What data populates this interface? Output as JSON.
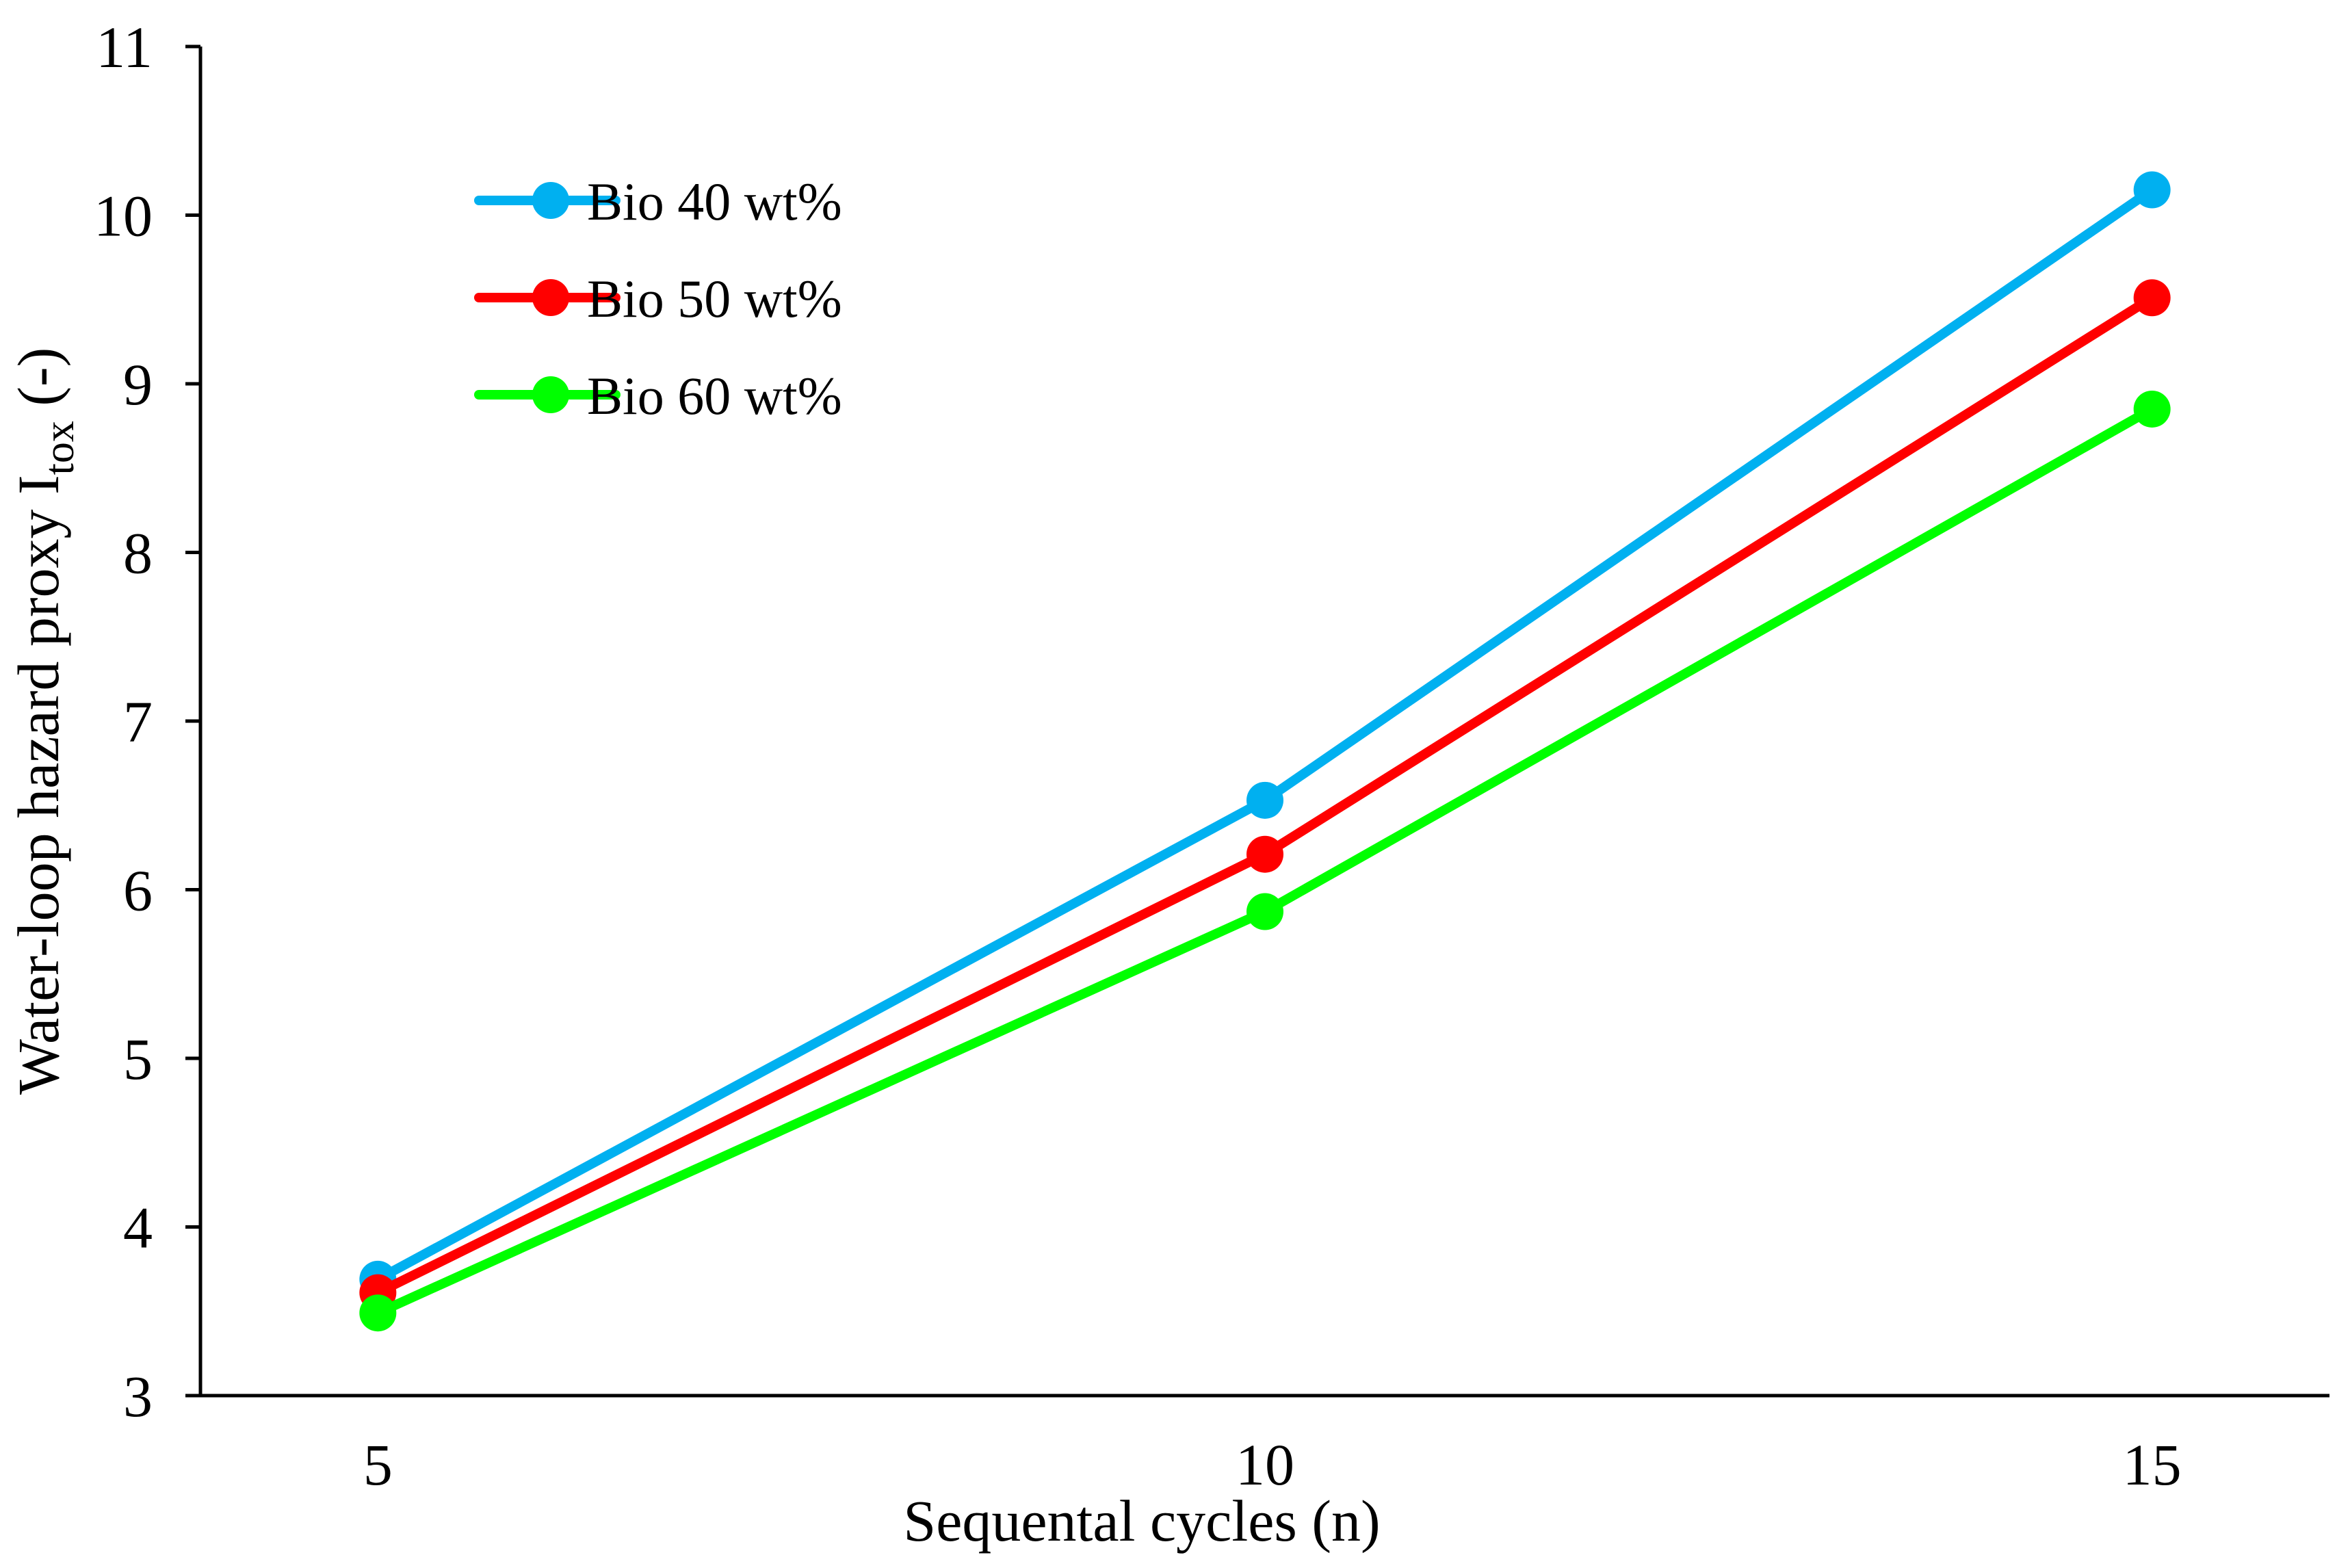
{
  "chart_data": {
    "type": "line",
    "title": "",
    "xlabel": "Sequental cycles (n)",
    "ylabel": {
      "main": "Water-loop hazard proxy I",
      "subscript": "tox",
      "suffix": " (-)"
    },
    "x": [
      5,
      10,
      15
    ],
    "x_ticks": [
      "5",
      "10",
      "15"
    ],
    "xlim": [
      4,
      16
    ],
    "ylim": [
      3,
      11
    ],
    "y_ticks": [
      "3",
      "4",
      "5",
      "6",
      "7",
      "8",
      "9",
      "10",
      "11"
    ],
    "grid": false,
    "legend_position": "top-left",
    "series": [
      {
        "name": "Bio 40 wt%",
        "color": "#00B0F0",
        "values": [
          3.69,
          6.53,
          10.15
        ]
      },
      {
        "name": "Bio 50 wt%",
        "color": "#FF0000",
        "values": [
          3.61,
          6.21,
          9.51
        ]
      },
      {
        "name": "Bio 60 wt%",
        "color": "#00FF00",
        "values": [
          3.49,
          5.87,
          8.85
        ]
      }
    ]
  }
}
